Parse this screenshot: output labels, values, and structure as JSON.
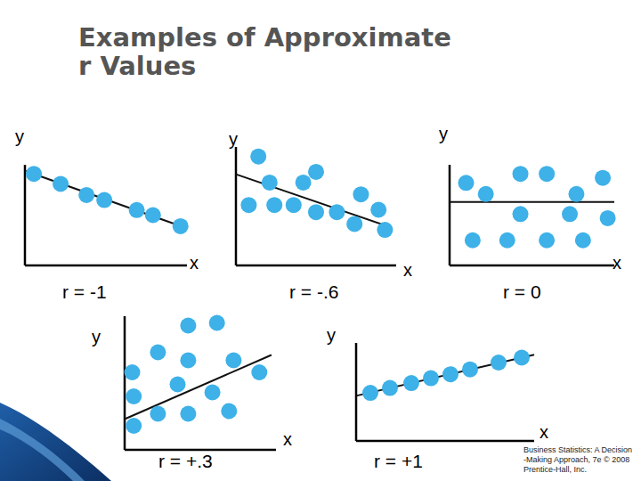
{
  "title_lines": [
    "Examples of Approximate",
    "r Values"
  ],
  "footer_lines": [
    "Business Statistics: A Decision",
    "-Making Approach, 7e © 2008",
    "Prentice-Hall, Inc."
  ],
  "chart_data": [
    {
      "type": "scatter",
      "title": "r = -1",
      "x_label": "x",
      "y_label": "y",
      "tick_labels": false,
      "color": "#3db1e8",
      "x": [
        0.55,
        2.2,
        3.8,
        4.9,
        6.9,
        7.9,
        9.6
      ],
      "values": [
        9.1,
        8.1,
        7.0,
        6.5,
        5.5,
        5.0,
        3.9
      ],
      "xlim": [
        0,
        10
      ],
      "ylim": [
        0,
        10
      ],
      "trend_line": {
        "x": [
          0,
          9.8
        ],
        "y": [
          9.4,
          3.8
        ]
      }
    },
    {
      "type": "scatter",
      "title": "r = -.6",
      "x_label": "x",
      "y_label": "y",
      "tick_labels": false,
      "color": "#3db1e8",
      "x": [
        1.4,
        2.1,
        5.0,
        4.2,
        7.8,
        0.8,
        2.4,
        3.6,
        5.0,
        6.3,
        8.9,
        7.4,
        9.3
      ],
      "values": [
        9.2,
        7.0,
        7.9,
        7.0,
        6.0,
        5.1,
        5.1,
        5.1,
        4.5,
        4.5,
        4.7,
        3.5,
        3.0
      ],
      "xlim": [
        0,
        10
      ],
      "ylim": [
        0,
        10
      ],
      "trend_line": {
        "x": [
          0,
          9.7
        ],
        "y": [
          7.7,
          3.2
        ]
      }
    },
    {
      "type": "scatter",
      "title": "r = 0",
      "x_label": "x",
      "y_label": "y",
      "tick_labels": false,
      "color": "#3db1e8",
      "x": [
        1.0,
        2.2,
        4.3,
        5.9,
        7.7,
        9.3,
        4.3,
        7.3,
        1.4,
        3.5,
        5.9,
        8.1,
        9.6
      ],
      "values": [
        8.2,
        7.1,
        9.1,
        9.1,
        7.1,
        8.7,
        5.1,
        5.1,
        2.5,
        2.5,
        2.5,
        2.5,
        4.7
      ],
      "xlim": [
        0,
        10
      ],
      "ylim": [
        0,
        10
      ],
      "trend_line": {
        "x": [
          0,
          10
        ],
        "y": [
          6.3,
          6.3
        ]
      }
    },
    {
      "type": "scatter",
      "title": "r = +.3",
      "x_label": "x",
      "y_label": "y",
      "tick_labels": false,
      "color": "#3db1e8",
      "x": [
        4.2,
        6.1,
        2.2,
        4.2,
        7.2,
        0.5,
        3.5,
        5.8,
        8.9,
        0.6,
        2.2,
        4.2,
        6.9,
        0.6
      ],
      "values": [
        9.3,
        9.5,
        7.3,
        6.7,
        6.7,
        5.8,
        4.9,
        4.3,
        5.8,
        4.0,
        2.7,
        2.7,
        2.9,
        1.8
      ],
      "xlim": [
        0,
        10
      ],
      "ylim": [
        0,
        10
      ],
      "trend_line": {
        "x": [
          0,
          9.7
        ],
        "y": [
          2.3,
          7.1
        ]
      }
    },
    {
      "type": "scatter",
      "title": "r = +1",
      "x_label": "x",
      "y_label": "y",
      "tick_labels": false,
      "color": "#3db1e8",
      "x": [
        0.8,
        1.9,
        3.1,
        4.2,
        5.3,
        6.4,
        8.0,
        9.3
      ],
      "values": [
        4.9,
        5.4,
        5.9,
        6.4,
        6.8,
        7.3,
        8.0,
        8.5
      ],
      "xlim": [
        0,
        10
      ],
      "ylim": [
        0,
        10
      ],
      "trend_line": {
        "x": [
          0,
          10
        ],
        "y": [
          4.6,
          8.8
        ]
      }
    }
  ]
}
